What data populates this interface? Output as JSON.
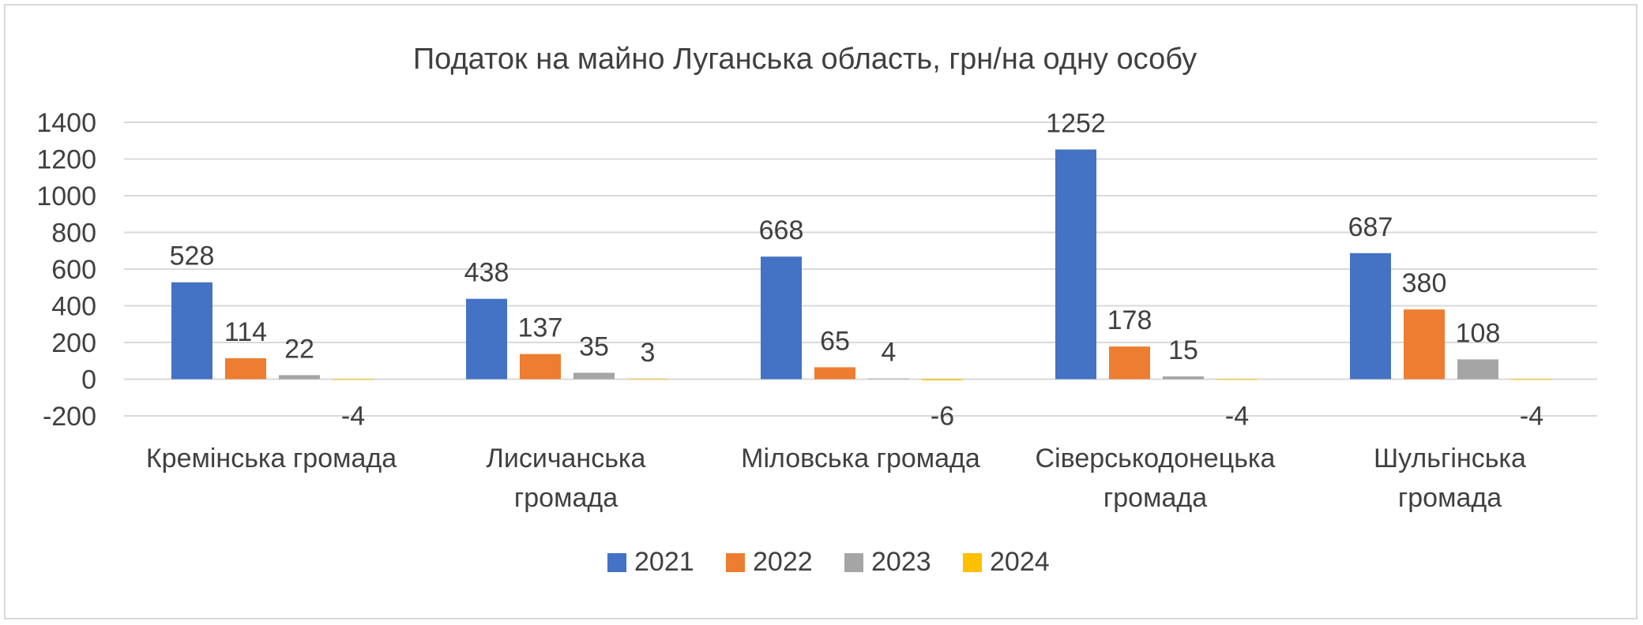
{
  "chart_data": {
    "type": "bar",
    "title": "Податок на майно Луганська область, грн/на одну особу",
    "xlabel": "",
    "ylabel": "",
    "ylim": [
      -200,
      1400
    ],
    "yticks": [
      -200,
      0,
      200,
      400,
      600,
      800,
      1000,
      1200,
      1400
    ],
    "categories": [
      [
        "Кремінська громада"
      ],
      [
        "Лисичанська",
        "громада"
      ],
      [
        "Міловська громада"
      ],
      [
        "Сіверськодонецька",
        "громада"
      ],
      [
        "Шульгінська",
        "громада"
      ]
    ],
    "series": [
      {
        "name": "2021",
        "color": "#4472C4",
        "values": [
          528,
          438,
          668,
          1252,
          687
        ]
      },
      {
        "name": "2022",
        "color": "#ED7D31",
        "values": [
          114,
          137,
          65,
          178,
          380
        ]
      },
      {
        "name": "2023",
        "color": "#A5A5A5",
        "values": [
          22,
          35,
          4,
          15,
          108
        ]
      },
      {
        "name": "2024",
        "color": "#FFC000",
        "values": [
          -4,
          3,
          -6,
          -4,
          -4
        ]
      }
    ],
    "grid": true,
    "legend_position": "bottom"
  }
}
